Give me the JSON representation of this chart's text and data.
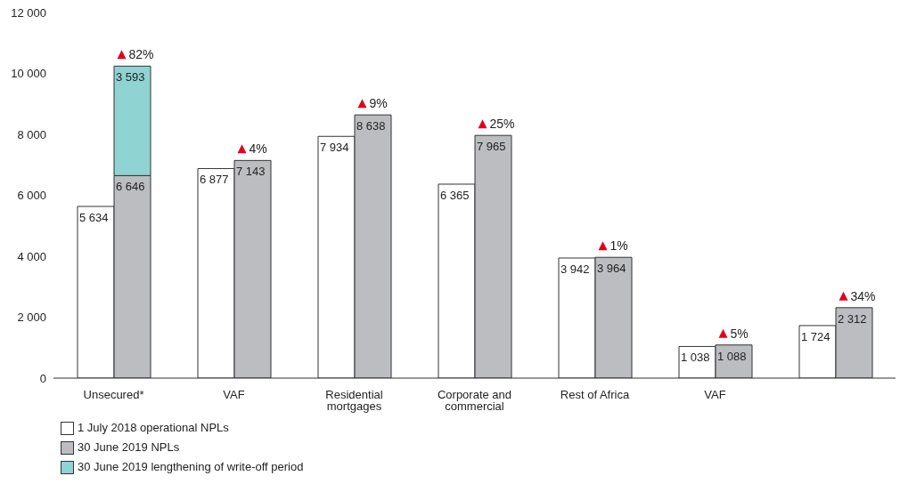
{
  "chart_data": {
    "type": "bar",
    "categories": [
      "Unsecured*",
      "VAF",
      "Residential mortgages",
      "Corporate and commercial",
      "Rest of Africa",
      "VAF",
      null
    ],
    "series": [
      {
        "name": "1 July 2018 operational NPLs",
        "color": "#ffffff",
        "values": [
          5634,
          6877,
          7934,
          6365,
          3942,
          1038,
          1724
        ],
        "value_labels": [
          "5 634",
          "6 877",
          "7 934",
          "6 365",
          "3 942",
          "1 038",
          "1 724"
        ]
      },
      {
        "name": "30 June 2019 NPLs",
        "color": "#bcbdc0",
        "values": [
          6646,
          7143,
          8638,
          7965,
          3964,
          1088,
          2312
        ],
        "value_labels": [
          "6 646",
          "7 143",
          "8 638",
          "7 965",
          "3 964",
          "1 088",
          "2 312"
        ]
      },
      {
        "name": "30 June 2019 lengthening of write-off period",
        "color": "#8fd3d3",
        "values": [
          3593,
          null,
          null,
          null,
          null,
          null,
          null
        ],
        "base": [
          6646,
          null,
          null,
          null,
          null,
          null,
          null
        ],
        "value_labels": [
          "3 593",
          null,
          null,
          null,
          null,
          null,
          null
        ]
      }
    ],
    "ylim": [
      0,
      12000
    ],
    "yticks": [
      0,
      {
        "value": 2000,
        "label": "2 000"
      },
      {
        "value": 4000,
        "label": "4 000"
      },
      {
        "value": 6000,
        "label": "6 000"
      },
      {
        "value": 8000,
        "label": "8 000"
      },
      {
        "value": 10000,
        "label": "10 000"
      },
      {
        "value": 12000,
        "label": "12 000"
      }
    ],
    "annotations": [
      {
        "text": "82%",
        "x": "Unsecured*",
        "y": 10239
      },
      {
        "text": "4%",
        "x": "VAF",
        "y": 7143
      },
      {
        "text": "9%",
        "x": "Residential mortgages",
        "y": 8638
      },
      {
        "text": "25%",
        "x": "Corporate and commercial",
        "y": 7965
      },
      {
        "text": "1%",
        "x": "Rest of Africa",
        "y": 3964
      },
      "5%",
      "34%"
    ],
    "grid": false,
    "legend": "bottom left"
  }
}
